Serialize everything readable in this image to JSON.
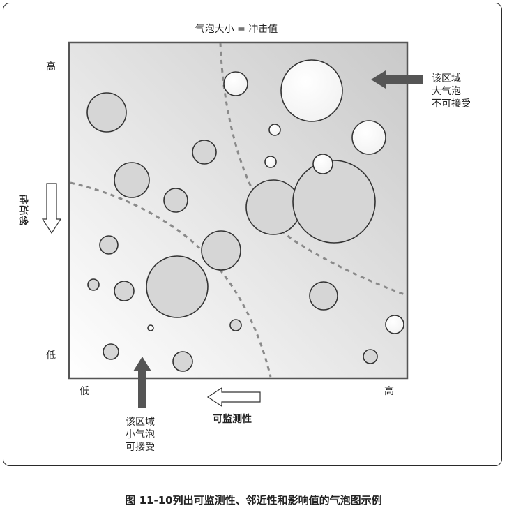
{
  "title": "气泡大小 = 冲击值",
  "y_axis": {
    "label": "邻近性",
    "high": "高",
    "low": "低"
  },
  "x_axis": {
    "label": "可监测性",
    "low": "低",
    "high": "高"
  },
  "annotations": {
    "top_right": "该区域\n大气泡\n不可接受",
    "bottom": "该区域\n小气泡\n可接受"
  },
  "caption": "图 11-10列出可监测性、邻近性和影响值的气泡图示例",
  "colors": {
    "bubble_gray": "#d6d6d6",
    "bubble_white": "#ffffff",
    "stroke": "#333333",
    "arrow": "#555555",
    "dashed": "#8a8a8a"
  }
}
